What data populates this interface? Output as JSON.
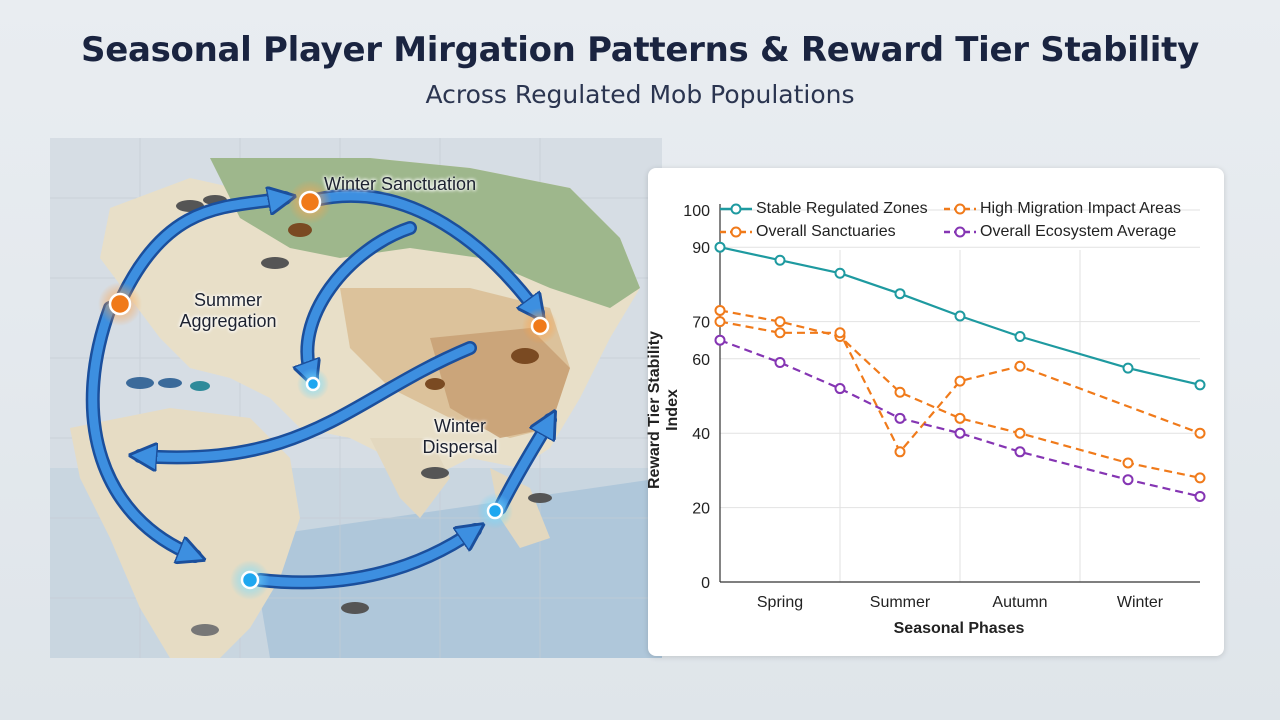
{
  "header": {
    "title": "Seasonal Player Mirgation Patterns & Reward Tier Stability",
    "subtitle": "Across Regulated Mob Populations"
  },
  "map": {
    "labels": {
      "winter_sanctuation": "Winter Sanctuation",
      "summer_aggregation": "Summer Aggregation",
      "winter_dispersal": "Winter Dispersal"
    },
    "colors": {
      "arrow": "#3d8fe0",
      "arrow_outline": "#1b4f9c",
      "orange_node": "#f07a1a",
      "blue_node": "#1ea7f0"
    }
  },
  "chart_data": {
    "type": "line",
    "xlabel": "Seasonal Phases",
    "ylabel": "Reward Tier Stability Index",
    "ylim": [
      0,
      100
    ],
    "yticks": [
      0,
      20,
      40,
      60,
      70,
      90,
      100
    ],
    "categories": [
      "Spring",
      "Summer",
      "Autumn",
      "Winter"
    ],
    "x_range": [
      0,
      8
    ],
    "grid": true,
    "legend_position": "top",
    "series": [
      {
        "name": "Stable Regulated Zones",
        "color": "#1e9aa0",
        "dash": false,
        "points": [
          [
            0,
            90
          ],
          [
            1,
            86.5
          ],
          [
            2,
            83
          ],
          [
            3,
            77.5
          ],
          [
            4,
            71.5
          ],
          [
            5,
            66
          ],
          [
            6.8,
            57.5
          ],
          [
            8,
            53
          ]
        ]
      },
      {
        "name": "High Migration Impact Areas",
        "color": "#f07a1a",
        "dash": true,
        "points": [
          [
            0,
            73
          ],
          [
            1,
            70
          ],
          [
            2,
            66
          ],
          [
            3,
            51
          ],
          [
            4,
            44
          ],
          [
            5,
            40
          ],
          [
            6.8,
            32
          ],
          [
            8,
            28
          ]
        ]
      },
      {
        "name": "Overall Sanctuaries",
        "color": "#f07a1a",
        "dash": true,
        "points": [
          [
            0,
            70
          ],
          [
            1,
            67
          ],
          [
            2,
            67
          ],
          [
            3,
            35
          ],
          [
            4,
            54
          ],
          [
            5,
            58
          ],
          [
            8,
            40
          ]
        ]
      },
      {
        "name": "Overall Ecosystem Average",
        "color": "#8535b3",
        "dash": true,
        "points": [
          [
            0,
            65
          ],
          [
            1,
            59
          ],
          [
            2,
            52
          ],
          [
            3,
            44
          ],
          [
            4,
            40
          ],
          [
            5,
            35
          ],
          [
            6.8,
            27.5
          ],
          [
            8,
            23
          ]
        ]
      }
    ]
  }
}
